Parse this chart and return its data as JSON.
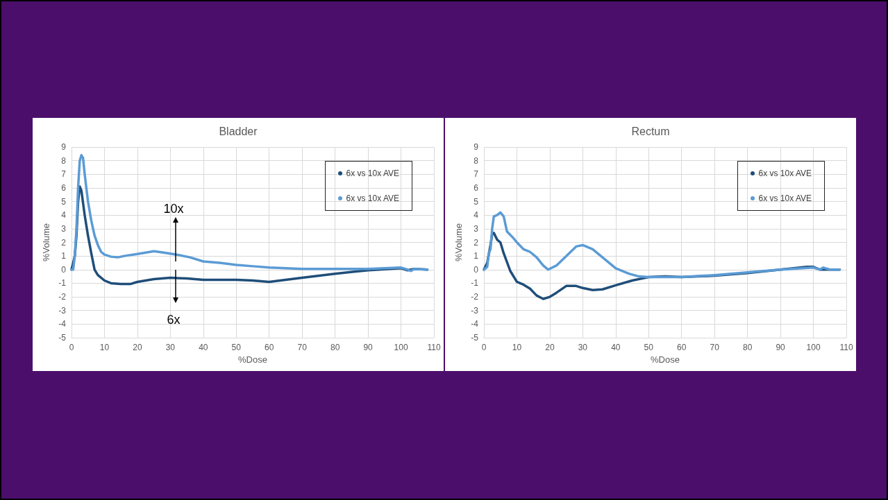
{
  "chart_data": [
    {
      "type": "line",
      "title": "Bladder",
      "xlabel": "%Dose",
      "ylabel": "%Volume",
      "xlim": [
        0,
        110
      ],
      "xticks": [
        0,
        10,
        20,
        30,
        40,
        50,
        60,
        70,
        80,
        90,
        100,
        110
      ],
      "ylim": [
        -5,
        9
      ],
      "yticks": [
        -5,
        -4,
        -3,
        -2,
        -1,
        0,
        1,
        2,
        3,
        4,
        5,
        6,
        7,
        8,
        9
      ],
      "grid": true,
      "legend": "top right",
      "annotations": [
        "10x",
        "6x"
      ],
      "series": [
        {
          "name": "6x vs 10x AVE",
          "color": "#1f4e79",
          "x": [
            0,
            1,
            1.5,
            2,
            2.5,
            3,
            4,
            5,
            6,
            7,
            8,
            10,
            12,
            15,
            18,
            20,
            25,
            30,
            35,
            40,
            50,
            55,
            60,
            65,
            70,
            80,
            90,
            100,
            102,
            104,
            108
          ],
          "values": [
            0,
            1,
            2.5,
            5,
            6.1,
            5.8,
            4,
            2.5,
            1.2,
            0,
            -0.4,
            -0.8,
            -1,
            -1.05,
            -1.05,
            -0.9,
            -0.7,
            -0.6,
            -0.65,
            -0.75,
            -0.75,
            -0.8,
            -0.9,
            -0.75,
            -0.6,
            -0.3,
            -0.05,
            0.1,
            -0.05,
            0.05,
            0
          ]
        },
        {
          "name": "6x vs 10x AVE",
          "color": "#5b9bd5",
          "x": [
            0,
            0.5,
            1,
            1.5,
            2,
            2.5,
            3,
            3.5,
            4,
            5,
            6,
            7,
            8,
            9,
            10,
            12,
            14,
            16,
            20,
            25,
            28,
            32,
            36,
            40,
            45,
            50,
            55,
            60,
            65,
            70,
            80,
            90,
            95,
            100,
            102,
            103,
            104,
            108
          ],
          "values": [
            0,
            0,
            1,
            3,
            6,
            8,
            8.4,
            8.2,
            7,
            5,
            3.6,
            2.5,
            1.8,
            1.3,
            1.1,
            0.95,
            0.9,
            1,
            1.15,
            1.35,
            1.25,
            1.1,
            0.9,
            0.6,
            0.5,
            0.35,
            0.25,
            0.15,
            0.1,
            0.05,
            0.05,
            0.05,
            0.1,
            0.15,
            0,
            -0.1,
            0.05,
            0
          ]
        }
      ]
    },
    {
      "type": "line",
      "title": "Rectum",
      "xlabel": "%Dose",
      "ylabel": "%Volume",
      "xlim": [
        0,
        110
      ],
      "xticks": [
        0,
        10,
        20,
        30,
        40,
        50,
        60,
        70,
        80,
        90,
        100,
        110
      ],
      "ylim": [
        -5,
        9
      ],
      "yticks": [
        -5,
        -4,
        -3,
        -2,
        -1,
        0,
        1,
        2,
        3,
        4,
        5,
        6,
        7,
        8,
        9
      ],
      "grid": true,
      "legend": "top right",
      "series": [
        {
          "name": "6x vs 10x AVE",
          "color": "#1f4e79",
          "x": [
            0,
            1,
            2,
            2.5,
            3,
            4,
            5,
            6,
            8,
            10,
            12,
            14,
            16,
            18,
            20,
            22,
            25,
            28,
            30,
            33,
            36,
            40,
            45,
            50,
            55,
            60,
            70,
            80,
            90,
            98,
            100,
            102,
            105,
            108
          ],
          "values": [
            0,
            0.5,
            1.8,
            2.6,
            2.7,
            2.2,
            2,
            1.2,
            -0.1,
            -0.9,
            -1.1,
            -1.4,
            -1.9,
            -2.15,
            -2,
            -1.7,
            -1.2,
            -1.2,
            -1.35,
            -1.5,
            -1.45,
            -1.15,
            -0.8,
            -0.55,
            -0.5,
            -0.55,
            -0.45,
            -0.25,
            0,
            0.2,
            0.2,
            0,
            0,
            0
          ]
        },
        {
          "name": "6x vs 10x AVE",
          "color": "#5b9bd5",
          "x": [
            0,
            1,
            1.5,
            2,
            2.5,
            3,
            4,
            5,
            6,
            7,
            9,
            10,
            12,
            14,
            16,
            18,
            19.5,
            22,
            25,
            28,
            30,
            33,
            36,
            40,
            44,
            47,
            50,
            60,
            70,
            80,
            90,
            100,
            102,
            103,
            105,
            108
          ],
          "values": [
            0,
            0.2,
            1.2,
            1.5,
            3,
            3.9,
            4,
            4.2,
            3.9,
            2.8,
            2.3,
            2,
            1.5,
            1.3,
            0.9,
            0.3,
            0,
            0.3,
            1,
            1.7,
            1.8,
            1.5,
            0.9,
            0.1,
            -0.3,
            -0.5,
            -0.55,
            -0.55,
            -0.4,
            -0.2,
            0,
            0.15,
            0,
            0.15,
            0,
            0
          ]
        }
      ]
    }
  ]
}
